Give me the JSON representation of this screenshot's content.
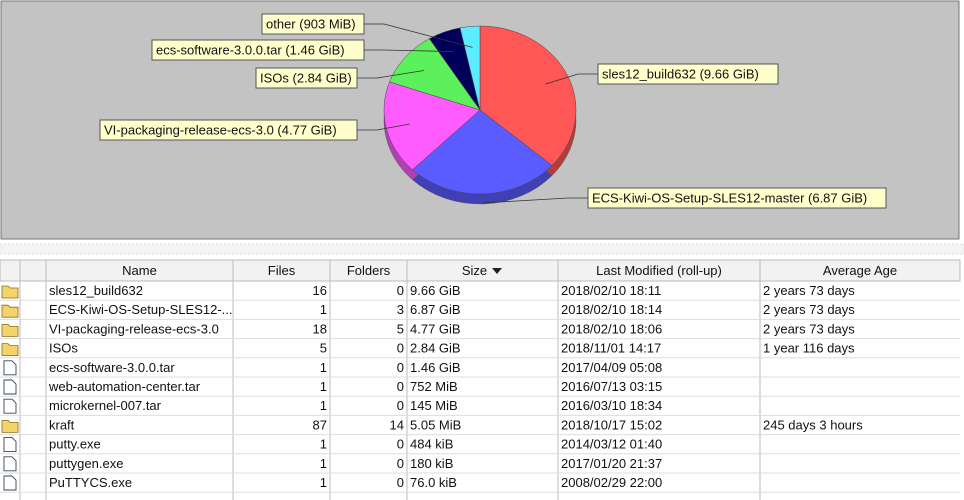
{
  "chart_data": {
    "type": "pie",
    "categories": [
      "sles12_build632 (9.66 GiB)",
      "ECS-Kiwi-OS-Setup-SLES12-master (6.87 GiB)",
      "VI-packaging-release-ecs-3.0 (4.77 GiB)",
      "ISOs (2.84 GiB)",
      "ecs-software-3.0.0.tar (1.46 GiB)",
      "other (903 MiB)"
    ],
    "values": [
      9.66,
      6.87,
      4.77,
      2.84,
      1.46,
      0.882
    ],
    "colors": [
      "#ff5656",
      "#5a5cff",
      "#ff5cff",
      "#5cf05c",
      "#00005a",
      "#5cecff"
    ]
  },
  "table": {
    "columns": [
      "Name",
      "Files",
      "Folders",
      "Size",
      "Last Modified (roll-up)",
      "Average Age"
    ],
    "rows": [
      {
        "name": "sles12_build632",
        "files": 16,
        "folders": 0,
        "size": "9.66 GiB",
        "modified": "2018/02/10 18:11",
        "age": "2 years 73 days"
      },
      {
        "name": "ECS-Kiwi-OS-Setup-SLES12-...",
        "files": 1,
        "folders": 3,
        "size": "6.87 GiB",
        "modified": "2018/02/10 18:14",
        "age": "2 years 73 days"
      },
      {
        "name": "VI-packaging-release-ecs-3.0",
        "files": 18,
        "folders": 5,
        "size": "4.77 GiB",
        "modified": "2018/02/10 18:06",
        "age": "2 years 73 days"
      },
      {
        "name": "ISOs",
        "files": 5,
        "folders": 0,
        "size": "2.84 GiB",
        "modified": "2018/11/01 14:17",
        "age": "1 year 116 days"
      },
      {
        "name": "ecs-software-3.0.0.tar",
        "files": 1,
        "folders": 0,
        "size": "1.46 GiB",
        "modified": "2017/04/09 05:08"
      },
      {
        "name": "web-automation-center.tar",
        "files": 1,
        "folders": 0,
        "size": "752 MiB",
        "modified": "2016/07/13 03:15"
      },
      {
        "name": "microkernel-007.tar",
        "files": 1,
        "folders": 0,
        "size": "145 MiB",
        "modified": "2016/03/10 18:34"
      },
      {
        "name": "kraft",
        "files": 87,
        "folders": 14,
        "size": "5.05 MiB",
        "modified": "2018/10/17 15:02",
        "age": "245 days 3 hours"
      },
      {
        "name": "putty.exe",
        "files": 1,
        "folders": 0,
        "size": "484 kiB",
        "modified": "2014/03/12 01:40"
      },
      {
        "name": "puttygen.exe",
        "files": 1,
        "folders": 0,
        "size": "180 kiB",
        "modified": "2017/01/20 21:37"
      },
      {
        "name": "PuTTYCS.exe",
        "files": 1,
        "folders": 0,
        "size": "76.0 kiB",
        "modified": "2008/02/29 22:00"
      }
    ]
  }
}
